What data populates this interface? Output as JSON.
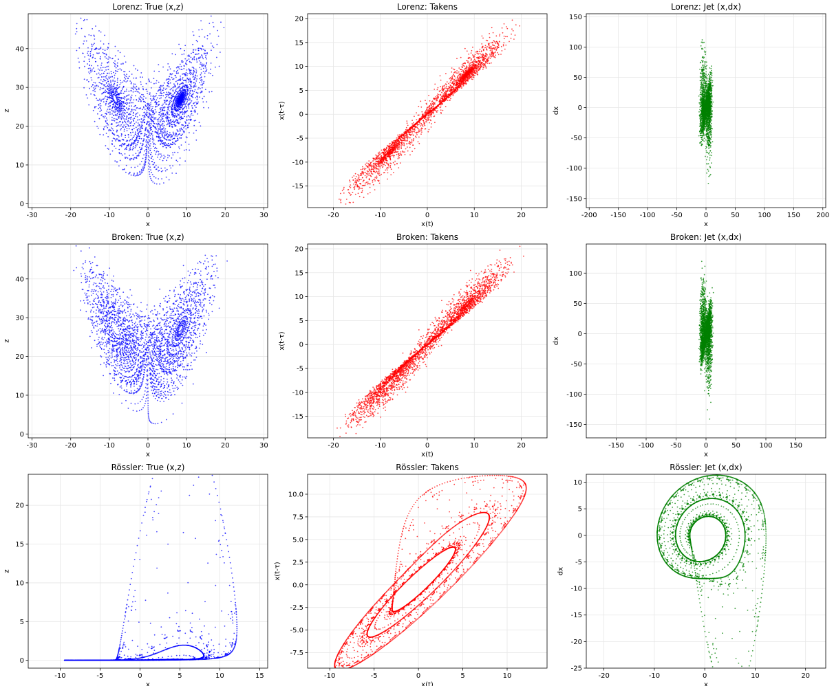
{
  "figure": {
    "rows": 3,
    "cols": 3,
    "grid": true
  },
  "chart_data": [
    {
      "type": "scatter",
      "title": "Lorenz: True (x,z)",
      "xlabel": "x",
      "ylabel": "z",
      "color": "#0000ff",
      "generator": "lorenz-xz",
      "xlim": [
        -31,
        31
      ],
      "ylim": [
        -1,
        49
      ],
      "xticks": [
        "-30",
        "-20",
        "-10",
        "0",
        "10",
        "20",
        "30"
      ],
      "xtick_values": [
        -30,
        -20,
        -10,
        0,
        10,
        20,
        30
      ],
      "yticks": [
        "0",
        "10",
        "20",
        "30",
        "40"
      ],
      "ytick_values": [
        0,
        10,
        20,
        30,
        40
      ]
    },
    {
      "type": "scatter",
      "title": "Lorenz: Takens",
      "xlabel": "x(t)",
      "ylabel": "x(t-τ)",
      "color": "#ff0000",
      "generator": "lorenz-takens",
      "xlim": [
        -25.5,
        25.5
      ],
      "ylim": [
        -19.5,
        21
      ],
      "xticks": [
        "-20",
        "-10",
        "0",
        "10",
        "20"
      ],
      "xtick_values": [
        -20,
        -10,
        0,
        10,
        20
      ],
      "yticks": [
        "-15",
        "-10",
        "-5",
        "0",
        "5",
        "10",
        "15",
        "20"
      ],
      "ytick_values": [
        -15,
        -10,
        -5,
        0,
        5,
        10,
        15,
        20
      ]
    },
    {
      "type": "scatter",
      "title": "Lorenz: Jet (x,dx)",
      "xlabel": "x",
      "ylabel": "dx",
      "color": "#008000",
      "generator": "lorenz-jet",
      "xlim": [
        -205,
        205
      ],
      "ylim": [
        -165,
        155
      ],
      "xticks": [
        "-200",
        "-150",
        "-100",
        "-50",
        "0",
        "50",
        "100",
        "150",
        "200"
      ],
      "xtick_values": [
        -200,
        -150,
        -100,
        -50,
        0,
        50,
        100,
        150,
        200
      ],
      "yticks": [
        "-150",
        "-100",
        "-50",
        "0",
        "50",
        "100",
        "150"
      ],
      "ytick_values": [
        -150,
        -100,
        -50,
        0,
        50,
        100,
        150
      ]
    },
    {
      "type": "scatter",
      "title": "Broken: True (x,z)",
      "xlabel": "x",
      "ylabel": "z",
      "color": "#0000ff",
      "generator": "broken-xz",
      "xlim": [
        -31,
        31
      ],
      "ylim": [
        -1,
        49
      ],
      "xticks": [
        "-30",
        "-20",
        "-10",
        "0",
        "10",
        "20",
        "30"
      ],
      "xtick_values": [
        -30,
        -20,
        -10,
        0,
        10,
        20,
        30
      ],
      "yticks": [
        "0",
        "10",
        "20",
        "30",
        "40"
      ],
      "ytick_values": [
        0,
        10,
        20,
        30,
        40
      ]
    },
    {
      "type": "scatter",
      "title": "Broken: Takens",
      "xlabel": "x(t)",
      "ylabel": "x(t-τ)",
      "color": "#ff0000",
      "generator": "broken-takens",
      "xlim": [
        -25.5,
        25.5
      ],
      "ylim": [
        -19.5,
        21
      ],
      "xticks": [
        "-20",
        "-10",
        "0",
        "10",
        "20"
      ],
      "xtick_values": [
        -20,
        -10,
        0,
        10,
        20
      ],
      "yticks": [
        "-15",
        "-10",
        "-5",
        "0",
        "5",
        "10",
        "15",
        "20"
      ],
      "ytick_values": [
        -15,
        -10,
        -5,
        0,
        5,
        10,
        15,
        20
      ]
    },
    {
      "type": "scatter",
      "title": "Broken: Jet (x,dx)",
      "xlabel": "x",
      "ylabel": "dx",
      "color": "#008000",
      "generator": "broken-jet",
      "xlim": [
        -200,
        200
      ],
      "ylim": [
        -172,
        148
      ],
      "xticks": [
        "-150",
        "-100",
        "-50",
        "0",
        "50",
        "100",
        "150"
      ],
      "xtick_values": [
        -150,
        -100,
        -50,
        0,
        50,
        100,
        150
      ],
      "yticks": [
        "-150",
        "-100",
        "-50",
        "0",
        "50",
        "100"
      ],
      "ytick_values": [
        -150,
        -100,
        -50,
        0,
        50,
        100
      ]
    },
    {
      "type": "scatter",
      "title": "Rössler: True (x,z)",
      "xlabel": "x",
      "ylabel": "z",
      "color": "#0000ff",
      "generator": "rossler-xz",
      "xlim": [
        -14,
        16
      ],
      "ylim": [
        -1,
        24
      ],
      "xticks": [
        "-10",
        "-5",
        "0",
        "5",
        "10",
        "15"
      ],
      "xtick_values": [
        -10,
        -5,
        0,
        5,
        10,
        15
      ],
      "yticks": [
        "0",
        "5",
        "10",
        "15",
        "20"
      ],
      "ytick_values": [
        0,
        5,
        10,
        15,
        20
      ]
    },
    {
      "type": "scatter",
      "title": "Rössler: Takens",
      "xlabel": "x(t)",
      "ylabel": "x(t-τ)",
      "color": "#ff0000",
      "generator": "rossler-takens",
      "xlim": [
        -12.5,
        14.5
      ],
      "ylim": [
        -9.2,
        12.2
      ],
      "xticks": [
        "-10",
        "-5",
        "0",
        "5",
        "10"
      ],
      "xtick_values": [
        -10,
        -5,
        0,
        5,
        10
      ],
      "yticks": [
        "-7.5",
        "-5.0",
        "-2.5",
        "0.0",
        "2.5",
        "5.0",
        "7.5",
        "10.0"
      ],
      "ytick_values": [
        -7.5,
        -5,
        -2.5,
        0,
        2.5,
        5,
        7.5,
        10
      ]
    },
    {
      "type": "scatter",
      "title": "Rössler: Jet (x,dx)",
      "xlabel": "x",
      "ylabel": "dx",
      "color": "#008000",
      "generator": "rossler-jet",
      "xlim": [
        -23.5,
        24
      ],
      "ylim": [
        -25,
        11.5
      ],
      "xticks": [
        "-20",
        "-10",
        "0",
        "10",
        "20"
      ],
      "xtick_values": [
        -20,
        -10,
        0,
        10,
        20
      ],
      "yticks": [
        "-25",
        "-20",
        "-15",
        "-10",
        "-5",
        "0",
        "5",
        "10"
      ],
      "ytick_values": [
        -25,
        -20,
        -15,
        -10,
        -5,
        0,
        5,
        10
      ]
    }
  ]
}
